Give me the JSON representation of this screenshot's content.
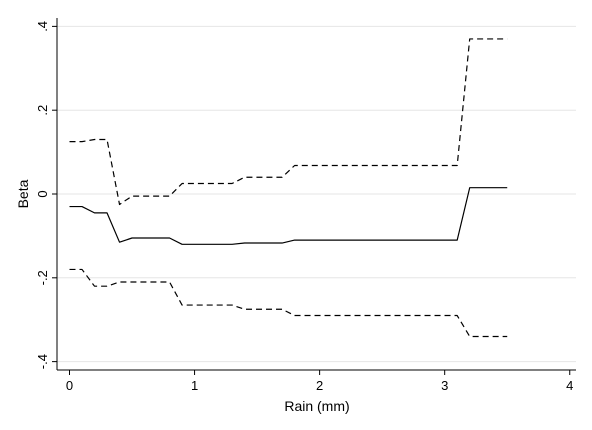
{
  "chart_data": {
    "type": "line",
    "xlabel": "Rain (mm)",
    "ylabel": "Beta",
    "xlim": [
      -0.1,
      4.05
    ],
    "ylim": [
      -0.42,
      0.42
    ],
    "x_ticks": [
      0,
      1,
      2,
      3,
      4
    ],
    "x_tick_labels": [
      "0",
      "1",
      "2",
      "3",
      "4"
    ],
    "y_ticks": [
      -0.4,
      -0.2,
      0,
      0.2,
      0.4
    ],
    "y_tick_labels": [
      "-.4",
      "-.2",
      "0",
      ".2",
      ".4"
    ],
    "grid": "horizontal",
    "series": [
      {
        "role": "estimate",
        "style": "solid",
        "x": [
          0,
          0.1,
          0.2,
          0.3,
          0.4,
          0.5,
          0.6,
          0.7,
          0.8,
          0.9,
          1.0,
          1.1,
          1.2,
          1.3,
          1.4,
          1.5,
          1.6,
          1.7,
          1.8,
          1.9,
          2.0,
          2.1,
          2.2,
          2.3,
          2.4,
          2.5,
          2.6,
          2.7,
          2.8,
          2.9,
          3.0,
          3.1,
          3.2,
          3.3,
          3.4,
          3.5
        ],
        "y": [
          -0.03,
          -0.03,
          -0.045,
          -0.045,
          -0.115,
          -0.105,
          -0.105,
          -0.105,
          -0.105,
          -0.12,
          -0.12,
          -0.12,
          -0.12,
          -0.12,
          -0.117,
          -0.117,
          -0.117,
          -0.117,
          -0.11,
          -0.11,
          -0.11,
          -0.11,
          -0.11,
          -0.11,
          -0.11,
          -0.11,
          -0.11,
          -0.11,
          -0.11,
          -0.11,
          -0.11,
          -0.11,
          0.015,
          0.015,
          0.015,
          0.015
        ]
      },
      {
        "role": "upper-ci",
        "style": "dashed",
        "x": [
          0,
          0.1,
          0.2,
          0.3,
          0.4,
          0.5,
          0.6,
          0.7,
          0.8,
          0.9,
          1.0,
          1.1,
          1.2,
          1.3,
          1.4,
          1.5,
          1.6,
          1.7,
          1.8,
          1.9,
          2.0,
          2.1,
          2.2,
          2.3,
          2.4,
          2.5,
          2.6,
          2.7,
          2.8,
          2.9,
          3.0,
          3.1,
          3.2,
          3.3,
          3.4,
          3.5
        ],
        "y": [
          0.125,
          0.125,
          0.13,
          0.13,
          -0.025,
          -0.005,
          -0.005,
          -0.005,
          -0.005,
          0.025,
          0.025,
          0.025,
          0.025,
          0.025,
          0.04,
          0.04,
          0.04,
          0.04,
          0.068,
          0.068,
          0.068,
          0.068,
          0.068,
          0.068,
          0.068,
          0.068,
          0.068,
          0.068,
          0.068,
          0.068,
          0.068,
          0.068,
          0.37,
          0.37,
          0.37,
          0.37
        ]
      },
      {
        "role": "lower-ci",
        "style": "dashed",
        "x": [
          0,
          0.1,
          0.2,
          0.3,
          0.4,
          0.5,
          0.6,
          0.7,
          0.8,
          0.9,
          1.0,
          1.1,
          1.2,
          1.3,
          1.4,
          1.5,
          1.6,
          1.7,
          1.8,
          1.9,
          2.0,
          2.1,
          2.2,
          2.3,
          2.4,
          2.5,
          2.6,
          2.7,
          2.8,
          2.9,
          3.0,
          3.1,
          3.2,
          3.3,
          3.4,
          3.5
        ],
        "y": [
          -0.18,
          -0.18,
          -0.22,
          -0.22,
          -0.21,
          -0.21,
          -0.21,
          -0.21,
          -0.21,
          -0.265,
          -0.265,
          -0.265,
          -0.265,
          -0.265,
          -0.275,
          -0.275,
          -0.275,
          -0.275,
          -0.29,
          -0.29,
          -0.29,
          -0.29,
          -0.29,
          -0.29,
          -0.29,
          -0.29,
          -0.29,
          -0.29,
          -0.29,
          -0.29,
          -0.29,
          -0.29,
          -0.34,
          -0.34,
          -0.34,
          -0.34
        ]
      }
    ]
  }
}
